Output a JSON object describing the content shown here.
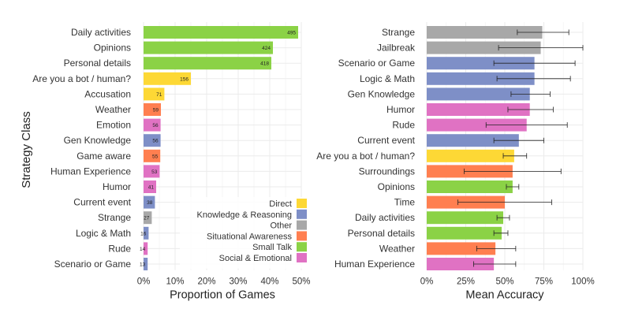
{
  "figure": {
    "y_axis_title": "Strategy Class"
  },
  "colors": {
    "Direct": "#FDD835",
    "Knowledge & Reasoning": "#7E8FC7",
    "Other": "#A8A8A8",
    "Situational Awareness": "#FF7F50",
    "Small Talk": "#8BD246",
    "Social & Emotional": "#E072C3",
    "grid": "#EBEBEB",
    "text": "#333333"
  },
  "legend": {
    "placement": "bottom-right of left panel",
    "entries": [
      "Direct",
      "Knowledge & Reasoning",
      "Other",
      "Situational Awareness",
      "Small Talk",
      "Social & Emotional"
    ]
  },
  "chart_data": [
    {
      "type": "bar",
      "orientation": "horizontal",
      "xlabel": "Proportion of Games",
      "xlim": [
        0,
        0.5
      ],
      "xticks": [
        "0%",
        "10%",
        "20%",
        "30%",
        "40%",
        "50%"
      ],
      "grid": true,
      "categories": [
        "Daily activities",
        "Opinions",
        "Personal details",
        "Are you a bot / human?",
        "Accusation",
        "Weather",
        "Emotion",
        "Gen Knowledge",
        "Game aware",
        "Human Experience",
        "Humor",
        "Current event",
        "Strange",
        "Logic & Math",
        "Rude",
        "Scenario or Game"
      ],
      "values": [
        0.49,
        0.41,
        0.405,
        0.15,
        0.066,
        0.055,
        0.054,
        0.054,
        0.053,
        0.051,
        0.04,
        0.036,
        0.026,
        0.016,
        0.013,
        0.013
      ],
      "labels": [
        "495",
        "424",
        "418",
        "156",
        "71",
        "59",
        "56",
        "56",
        "55",
        "53",
        "41",
        "38",
        "27",
        "16",
        "14",
        "13"
      ],
      "groups": [
        "Small Talk",
        "Small Talk",
        "Small Talk",
        "Direct",
        "Direct",
        "Situational Awareness",
        "Social & Emotional",
        "Knowledge & Reasoning",
        "Situational Awareness",
        "Social & Emotional",
        "Social & Emotional",
        "Knowledge & Reasoning",
        "Other",
        "Knowledge & Reasoning",
        "Social & Emotional",
        "Knowledge & Reasoning"
      ]
    },
    {
      "type": "bar",
      "orientation": "horizontal",
      "xlabel": "Mean Accuracy",
      "xlim": [
        0,
        1.0
      ],
      "xticks": [
        "0%",
        "25%",
        "50%",
        "75%",
        "100%"
      ],
      "grid": true,
      "error_bars": true,
      "categories": [
        "Strange",
        "Jailbreak",
        "Scenario or Game",
        "Logic & Math",
        "Gen Knowledge",
        "Humor",
        "Rude",
        "Current event",
        "Are you a bot / human?",
        "Surroundings",
        "Opinions",
        "Time",
        "Daily activities",
        "Personal details",
        "Weather",
        "Human Experience"
      ],
      "values": [
        0.74,
        0.73,
        0.69,
        0.69,
        0.66,
        0.66,
        0.64,
        0.59,
        0.56,
        0.55,
        0.55,
        0.5,
        0.49,
        0.48,
        0.44,
        0.43
      ],
      "err_low": [
        0.58,
        0.46,
        0.43,
        0.45,
        0.54,
        0.52,
        0.38,
        0.43,
        0.49,
        0.24,
        0.51,
        0.2,
        0.45,
        0.43,
        0.32,
        0.3
      ],
      "err_high": [
        0.91,
        1.0,
        0.95,
        0.92,
        0.79,
        0.81,
        0.9,
        0.75,
        0.64,
        0.86,
        0.59,
        0.8,
        0.53,
        0.52,
        0.57,
        0.57
      ],
      "groups": [
        "Other",
        "Other",
        "Knowledge & Reasoning",
        "Knowledge & Reasoning",
        "Knowledge & Reasoning",
        "Social & Emotional",
        "Social & Emotional",
        "Knowledge & Reasoning",
        "Direct",
        "Situational Awareness",
        "Small Talk",
        "Situational Awareness",
        "Small Talk",
        "Small Talk",
        "Situational Awareness",
        "Social & Emotional"
      ]
    }
  ]
}
